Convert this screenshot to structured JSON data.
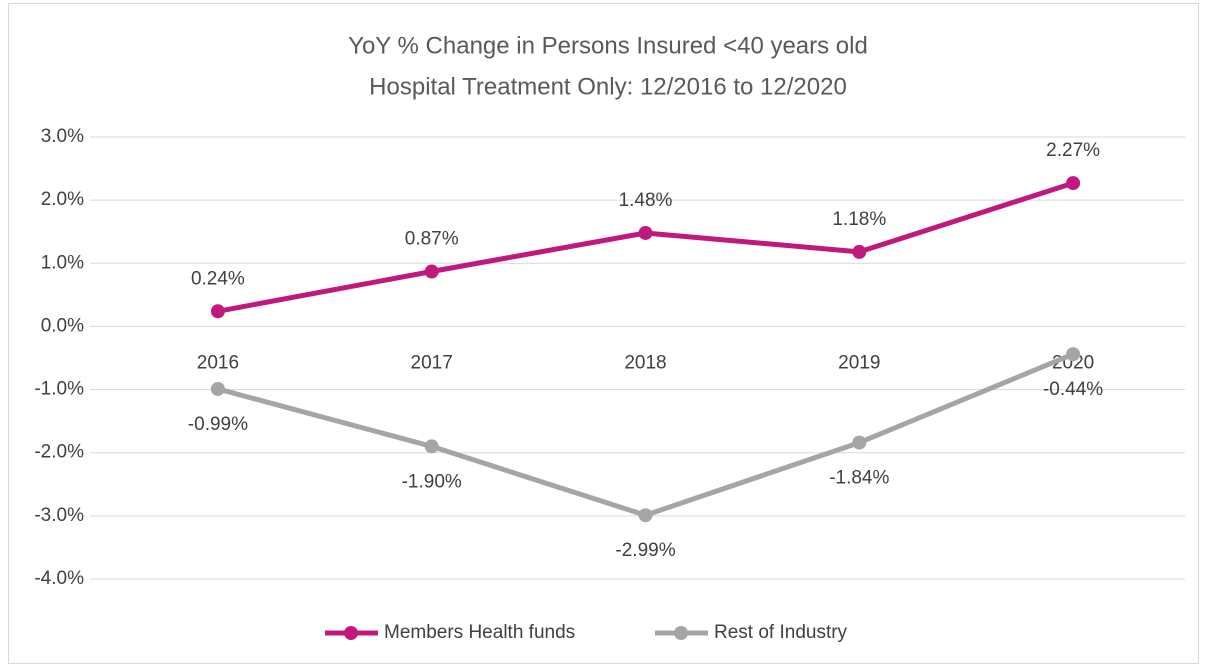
{
  "chart_data": {
    "type": "line",
    "title": [
      "YoY % Change in Persons Insured <40 years old",
      "Hospital Treatment Only:  12/2016 to 12/2020"
    ],
    "categories": [
      "2016",
      "2017",
      "2018",
      "2019",
      "2020"
    ],
    "series": [
      {
        "name": "Members Health funds",
        "color": "#c0187c",
        "values": [
          0.24,
          0.87,
          1.48,
          1.18,
          2.27
        ],
        "value_labels": [
          "0.24%",
          "0.87%",
          "1.48%",
          "1.18%",
          "2.27%"
        ]
      },
      {
        "name": "Rest of Industry",
        "color": "#a5a5a5",
        "values": [
          -0.99,
          -1.9,
          -2.99,
          -1.84,
          -0.44
        ],
        "value_labels": [
          "-0.99%",
          "-1.90%",
          "-2.99%",
          "-1.84%",
          "-0.44%"
        ]
      }
    ],
    "ylim": [
      -4,
      3
    ],
    "yticks": [
      {
        "value": 3,
        "label": "3.0%"
      },
      {
        "value": 2,
        "label": "2.0%"
      },
      {
        "value": 1,
        "label": "1.0%"
      },
      {
        "value": 0,
        "label": "0.0%"
      },
      {
        "value": -1,
        "label": "-1.0%"
      },
      {
        "value": -2,
        "label": "-2.0%"
      },
      {
        "value": -3,
        "label": "-3.0%"
      },
      {
        "value": -4,
        "label": "-4.0%"
      }
    ],
    "grid": true,
    "legend": "bottom"
  }
}
